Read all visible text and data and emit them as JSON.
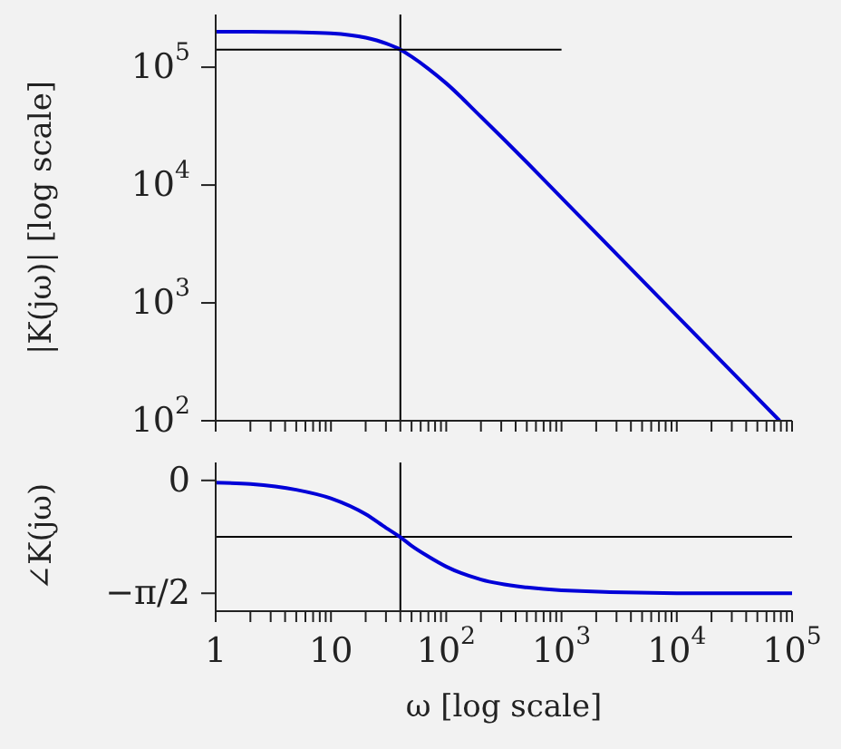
{
  "chart_data": [
    {
      "type": "line",
      "ylabel": "|K(jω)|  [log scale]",
      "log": "xy",
      "xlim": [
        1,
        100000
      ],
      "ylim": [
        100,
        280000
      ],
      "xticks": [
        {
          "value": 1,
          "label": null
        },
        {
          "value": 2,
          "label": null
        },
        {
          "value": 3,
          "label": null
        },
        {
          "value": 4,
          "label": null
        },
        {
          "value": 5,
          "label": null
        },
        {
          "value": 6,
          "label": null
        },
        {
          "value": 7,
          "label": null
        },
        {
          "value": 8,
          "label": null
        },
        {
          "value": 9,
          "label": null
        },
        {
          "value": 10,
          "label": null
        },
        {
          "value": 20,
          "label": null
        },
        {
          "value": 30,
          "label": null
        },
        {
          "value": 40,
          "label": null
        },
        {
          "value": 50,
          "label": null
        },
        {
          "value": 60,
          "label": null
        },
        {
          "value": 70,
          "label": null
        },
        {
          "value": 80,
          "label": null
        },
        {
          "value": 90,
          "label": null
        },
        {
          "value": 100,
          "label": null
        },
        {
          "value": 200,
          "label": null
        },
        {
          "value": 300,
          "label": null
        },
        {
          "value": 400,
          "label": null
        },
        {
          "value": 500,
          "label": null
        },
        {
          "value": 600,
          "label": null
        },
        {
          "value": 700,
          "label": null
        },
        {
          "value": 800,
          "label": null
        },
        {
          "value": 900,
          "label": null
        },
        {
          "value": 1000,
          "label": null
        },
        {
          "value": 2000,
          "label": null
        },
        {
          "value": 3000,
          "label": null
        },
        {
          "value": 4000,
          "label": null
        },
        {
          "value": 5000,
          "label": null
        },
        {
          "value": 6000,
          "label": null
        },
        {
          "value": 7000,
          "label": null
        },
        {
          "value": 8000,
          "label": null
        },
        {
          "value": 9000,
          "label": null
        },
        {
          "value": 10000,
          "label": null
        },
        {
          "value": 20000,
          "label": null
        },
        {
          "value": 30000,
          "label": null
        },
        {
          "value": 40000,
          "label": null
        },
        {
          "value": 50000,
          "label": null
        },
        {
          "value": 60000,
          "label": null
        },
        {
          "value": 70000,
          "label": null
        },
        {
          "value": 80000,
          "label": null
        },
        {
          "value": 90000,
          "label": null
        },
        {
          "value": 100000,
          "label": null
        }
      ],
      "yticks": [
        {
          "value": 100,
          "label": "10$^{2}$"
        },
        {
          "value": 1000,
          "label": "10$^{3}$"
        },
        {
          "value": 10000,
          "label": "10$^{4}$"
        },
        {
          "value": 100000,
          "label": "10$^{5}$"
        }
      ],
      "tick_labels": "y",
      "grid": false,
      "marker": "none",
      "line_style": "solid",
      "ref_lines": [
        {
          "axis": "x",
          "value": 40,
          "color": "#000000"
        }
      ],
      "series": [
        {
          "color": "#0000d8",
          "x": [
            1,
            2,
            5,
            10,
            20,
            30,
            40,
            50,
            70,
            100,
            200,
            500,
            1000,
            10000,
            78000
          ],
          "values": [
            200000,
            200000,
            198000,
            194000,
            178000,
            159000,
            141000,
            123000,
            97000,
            73000,
            38000,
            15600,
            7800,
            780,
            100
          ]
        },
        {
          "color": "#000000",
          "x": [
            1,
            1000
          ],
          "values": [
            141000,
            141000
          ]
        }
      ]
    },
    {
      "type": "line",
      "ylabel": "∠K(jω)",
      "xlabel": "ω  [log scale]",
      "log": "x",
      "xlim": [
        1,
        100000
      ],
      "ylim": [
        -1.82,
        0.25
      ],
      "xticks": [
        1,
        {
          "value": 2,
          "label": null
        },
        {
          "value": 3,
          "label": null
        },
        {
          "value": 4,
          "label": null
        },
        {
          "value": 5,
          "label": null
        },
        {
          "value": 6,
          "label": null
        },
        {
          "value": 7,
          "label": null
        },
        {
          "value": 8,
          "label": null
        },
        {
          "value": 9,
          "label": null
        },
        10,
        {
          "value": 20,
          "label": null
        },
        {
          "value": 30,
          "label": null
        },
        {
          "value": 40,
          "label": null
        },
        {
          "value": 50,
          "label": null
        },
        {
          "value": 60,
          "label": null
        },
        {
          "value": 70,
          "label": null
        },
        {
          "value": 80,
          "label": null
        },
        {
          "value": 90,
          "label": null
        },
        {
          "value": 100,
          "label": "10$^{2}$"
        },
        {
          "value": 200,
          "label": null
        },
        {
          "value": 300,
          "label": null
        },
        {
          "value": 400,
          "label": null
        },
        {
          "value": 500,
          "label": null
        },
        {
          "value": 600,
          "label": null
        },
        {
          "value": 700,
          "label": null
        },
        {
          "value": 800,
          "label": null
        },
        {
          "value": 900,
          "label": null
        },
        {
          "value": 1000,
          "label": "10$^{3}$"
        },
        {
          "value": 2000,
          "label": null
        },
        {
          "value": 3000,
          "label": null
        },
        {
          "value": 4000,
          "label": null
        },
        {
          "value": 5000,
          "label": null
        },
        {
          "value": 6000,
          "label": null
        },
        {
          "value": 7000,
          "label": null
        },
        {
          "value": 8000,
          "label": null
        },
        {
          "value": 9000,
          "label": null
        },
        {
          "value": 10000,
          "label": "10$^{4}$"
        },
        {
          "value": 20000,
          "label": null
        },
        {
          "value": 30000,
          "label": null
        },
        {
          "value": 40000,
          "label": null
        },
        {
          "value": 50000,
          "label": null
        },
        {
          "value": 60000,
          "label": null
        },
        {
          "value": 70000,
          "label": null
        },
        {
          "value": 80000,
          "label": null
        },
        {
          "value": 90000,
          "label": null
        },
        {
          "value": 100000,
          "label": "10$^{5}$"
        }
      ],
      "yticks": [
        0,
        {
          "value": -1.5708,
          "label": "−π/2"
        }
      ],
      "grid": false,
      "marker": "none",
      "line_style": "solid",
      "ref_lines": [
        {
          "axis": "x",
          "value": 40,
          "color": "#000000"
        },
        {
          "axis": "y",
          "value": -0.785,
          "color": "#000000"
        }
      ],
      "series": [
        {
          "color": "#0000d8",
          "x": [
            1,
            2,
            5,
            10,
            20,
            30,
            40,
            50,
            70,
            100,
            200,
            500,
            1000,
            10000,
            100000
          ],
          "values": [
            -0.03,
            -0.05,
            -0.13,
            -0.25,
            -0.47,
            -0.66,
            -0.79,
            -0.91,
            -1.06,
            -1.2,
            -1.38,
            -1.49,
            -1.53,
            -1.57,
            -1.57
          ]
        }
      ]
    }
  ]
}
